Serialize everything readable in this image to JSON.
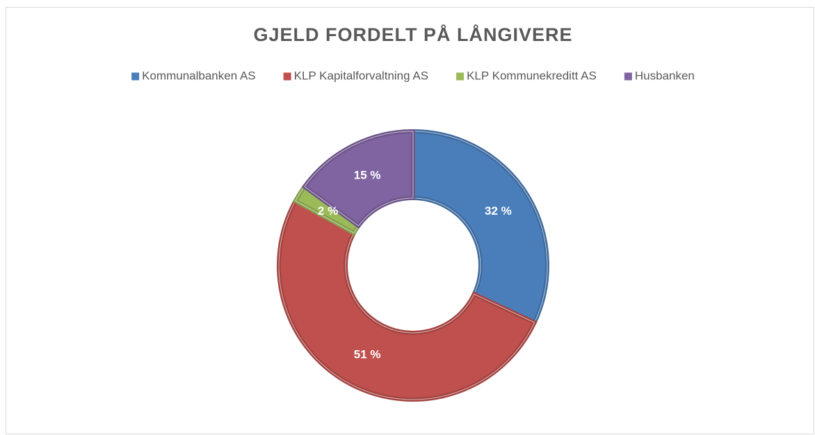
{
  "chart_data": {
    "type": "donut",
    "title": "GJELD FORDELT PÅ LÅNGIVERE",
    "categories": [
      "Kommunalbanken AS",
      "KLP Kapitalforvaltning AS",
      "KLP Kommunekreditt AS",
      "Husbanken"
    ],
    "values": [
      32,
      51,
      2,
      15
    ],
    "value_labels": [
      "32 %",
      "51 %",
      "2 %",
      "15 %"
    ],
    "colors": [
      "#4a7ebb",
      "#c0504d",
      "#9bbb59",
      "#8064a2"
    ],
    "legend": "top"
  }
}
